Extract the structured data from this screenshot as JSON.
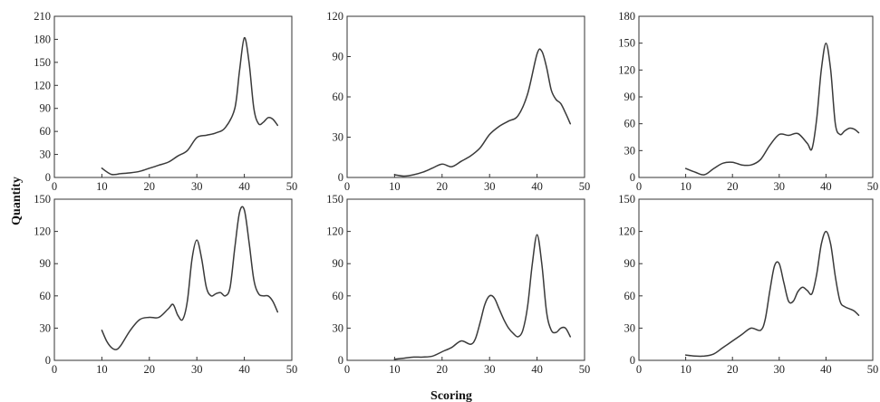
{
  "figure": {
    "xlabel": "Scoring",
    "ylabel": "Quantity"
  },
  "chart_data": [
    {
      "type": "line",
      "xlim": [
        0,
        50
      ],
      "ylim": [
        0,
        210
      ],
      "xticks": [
        "0",
        "10",
        "20",
        "30",
        "40",
        "50"
      ],
      "yticks": [
        "0",
        "30",
        "60",
        "90",
        "120",
        "150",
        "180",
        "210"
      ],
      "series": [
        {
          "x": [
            10,
            12,
            14,
            16,
            18,
            20,
            22,
            24,
            26,
            28,
            30,
            32,
            34,
            36,
            38,
            39,
            40,
            41,
            42,
            43,
            44,
            45,
            46,
            47
          ],
          "values": [
            12,
            4,
            5,
            6,
            8,
            12,
            16,
            20,
            28,
            35,
            52,
            55,
            58,
            65,
            90,
            140,
            182,
            150,
            90,
            70,
            72,
            78,
            76,
            68
          ]
        }
      ]
    },
    {
      "type": "line",
      "xlim": [
        0,
        50
      ],
      "ylim": [
        0,
        120
      ],
      "xticks": [
        "0",
        "10",
        "20",
        "30",
        "40",
        "50"
      ],
      "yticks": [
        "0",
        "30",
        "60",
        "90",
        "120"
      ],
      "series": [
        {
          "x": [
            10,
            12,
            14,
            16,
            18,
            20,
            22,
            24,
            26,
            28,
            30,
            32,
            34,
            36,
            38,
            40,
            41,
            42,
            43,
            44,
            45,
            46,
            47
          ],
          "values": [
            2,
            1,
            2,
            4,
            7,
            10,
            8,
            12,
            16,
            22,
            32,
            38,
            42,
            46,
            62,
            92,
            94,
            82,
            65,
            58,
            55,
            48,
            40
          ]
        }
      ]
    },
    {
      "type": "line",
      "xlim": [
        0,
        50
      ],
      "ylim": [
        0,
        180
      ],
      "xticks": [
        "0",
        "10",
        "20",
        "30",
        "40",
        "50"
      ],
      "yticks": [
        "0",
        "30",
        "60",
        "90",
        "120",
        "150",
        "180"
      ],
      "series": [
        {
          "x": [
            10,
            12,
            14,
            16,
            18,
            20,
            22,
            24,
            26,
            28,
            30,
            32,
            34,
            36,
            37,
            38,
            39,
            40,
            41,
            42,
            43,
            44,
            45,
            46,
            47
          ],
          "values": [
            10,
            6,
            3,
            10,
            16,
            17,
            14,
            14,
            20,
            36,
            48,
            47,
            49,
            38,
            32,
            65,
            120,
            150,
            120,
            60,
            48,
            52,
            55,
            54,
            50
          ]
        }
      ]
    },
    {
      "type": "line",
      "xlim": [
        0,
        50
      ],
      "ylim": [
        0,
        150
      ],
      "xticks": [
        "0",
        "10",
        "20",
        "30",
        "40",
        "50"
      ],
      "yticks": [
        "0",
        "30",
        "60",
        "90",
        "120",
        "150"
      ],
      "series": [
        {
          "x": [
            10,
            11,
            12,
            13,
            14,
            16,
            18,
            20,
            22,
            24,
            25,
            26,
            27,
            28,
            29,
            30,
            31,
            32,
            33,
            34,
            35,
            36,
            37,
            38,
            39,
            40,
            41,
            42,
            43,
            44,
            45,
            46,
            47
          ],
          "values": [
            28,
            18,
            12,
            10,
            14,
            28,
            38,
            40,
            40,
            48,
            52,
            42,
            38,
            55,
            95,
            112,
            95,
            68,
            60,
            62,
            63,
            60,
            68,
            105,
            138,
            140,
            110,
            75,
            62,
            60,
            60,
            55,
            45
          ]
        }
      ]
    },
    {
      "type": "line",
      "xlim": [
        0,
        50
      ],
      "ylim": [
        0,
        150
      ],
      "xticks": [
        "0",
        "10",
        "20",
        "30",
        "40",
        "50"
      ],
      "yticks": [
        "0",
        "30",
        "60",
        "90",
        "120",
        "150"
      ],
      "series": [
        {
          "x": [
            10,
            12,
            14,
            16,
            18,
            20,
            22,
            24,
            26,
            27,
            28,
            29,
            30,
            31,
            32,
            33,
            34,
            35,
            36,
            37,
            38,
            39,
            40,
            41,
            42,
            43,
            44,
            45,
            46,
            47
          ],
          "values": [
            1,
            2,
            3,
            3,
            4,
            8,
            12,
            18,
            15,
            20,
            35,
            52,
            60,
            58,
            48,
            38,
            30,
            25,
            22,
            28,
            50,
            90,
            117,
            90,
            45,
            28,
            26,
            30,
            30,
            22
          ]
        }
      ]
    },
    {
      "type": "line",
      "xlim": [
        0,
        50
      ],
      "ylim": [
        0,
        150
      ],
      "xticks": [
        "0",
        "10",
        "20",
        "30",
        "40",
        "50"
      ],
      "yticks": [
        "0",
        "30",
        "60",
        "90",
        "120",
        "150"
      ],
      "series": [
        {
          "x": [
            10,
            12,
            14,
            16,
            18,
            20,
            22,
            24,
            26,
            27,
            28,
            29,
            30,
            31,
            32,
            33,
            34,
            35,
            36,
            37,
            38,
            39,
            40,
            41,
            42,
            43,
            44,
            45,
            46,
            47
          ],
          "values": [
            5,
            4,
            4,
            6,
            12,
            18,
            24,
            30,
            28,
            38,
            65,
            88,
            90,
            72,
            55,
            55,
            64,
            68,
            65,
            62,
            80,
            108,
            120,
            108,
            78,
            55,
            50,
            48,
            46,
            42
          ]
        }
      ]
    }
  ]
}
